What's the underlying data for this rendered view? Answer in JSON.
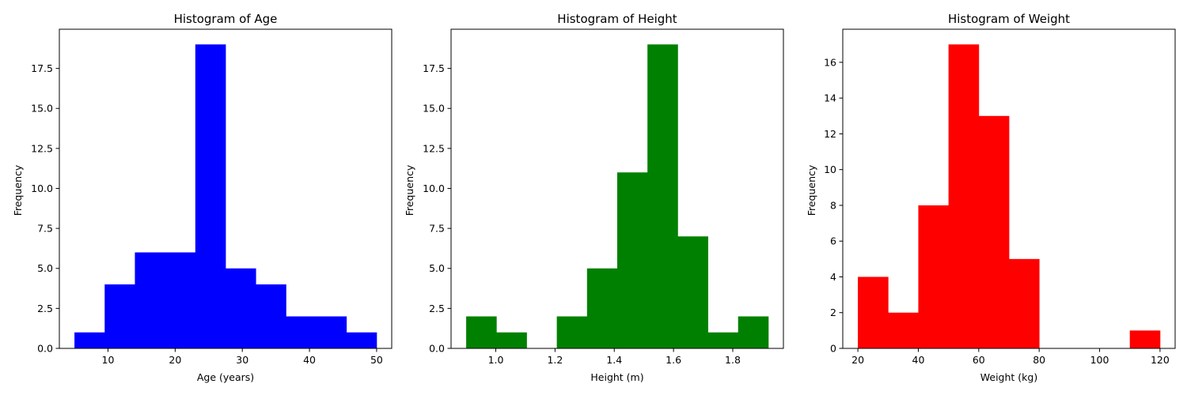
{
  "chart_data": [
    {
      "type": "bar",
      "title": "Histogram of Age",
      "xlabel": "Age (years)",
      "ylabel": "Frequency",
      "color": "#0000ff",
      "bin_edges": [
        5,
        9.5,
        14,
        18.5,
        23,
        27.5,
        32,
        36.5,
        41,
        45.5,
        50
      ],
      "values": [
        1,
        4,
        6,
        6,
        19,
        5,
        4,
        2,
        2,
        1
      ],
      "xlim": [
        2.75,
        52.25
      ],
      "ylim": [
        0,
        19.95
      ],
      "xticks": [
        10,
        20,
        30,
        40,
        50
      ],
      "xtick_labels": [
        "10",
        "20",
        "30",
        "40",
        "50"
      ],
      "yticks": [
        0,
        2.5,
        5,
        7.5,
        10,
        12.5,
        15,
        17.5
      ],
      "ytick_labels": [
        "0.0",
        "2.5",
        "5.0",
        "7.5",
        "10.0",
        "12.5",
        "15.0",
        "17.5"
      ]
    },
    {
      "type": "bar",
      "title": "Histogram of Height",
      "xlabel": "Height (m)",
      "ylabel": "Frequency",
      "color": "#008000",
      "bin_edges": [
        0.9,
        1.002,
        1.104,
        1.206,
        1.308,
        1.41,
        1.512,
        1.614,
        1.716,
        1.818,
        1.92
      ],
      "values": [
        2,
        1,
        0,
        2,
        5,
        11,
        19,
        7,
        1,
        2
      ],
      "xlim": [
        0.849,
        1.971
      ],
      "ylim": [
        0,
        19.95
      ],
      "xticks": [
        1.0,
        1.2,
        1.4,
        1.6,
        1.8
      ],
      "xtick_labels": [
        "1.0",
        "1.2",
        "1.4",
        "1.6",
        "1.8"
      ],
      "yticks": [
        0,
        2.5,
        5,
        7.5,
        10,
        12.5,
        15,
        17.5
      ],
      "ytick_labels": [
        "0.0",
        "2.5",
        "5.0",
        "7.5",
        "10.0",
        "12.5",
        "15.0",
        "17.5"
      ]
    },
    {
      "type": "bar",
      "title": "Histogram of Weight",
      "xlabel": "Weight (kg)",
      "ylabel": "Frequency",
      "color": "#ff0000",
      "bin_edges": [
        20,
        30,
        40,
        50,
        60,
        70,
        80,
        90,
        100,
        110,
        120
      ],
      "values": [
        4,
        2,
        8,
        17,
        13,
        5,
        0,
        0,
        0,
        1
      ],
      "xlim": [
        15,
        125
      ],
      "ylim": [
        0,
        17.85
      ],
      "xticks": [
        20,
        40,
        60,
        80,
        100,
        120
      ],
      "xtick_labels": [
        "20",
        "40",
        "60",
        "80",
        "100",
        "120"
      ],
      "yticks": [
        0,
        2,
        4,
        6,
        8,
        10,
        12,
        14,
        16
      ],
      "ytick_labels": [
        "0",
        "2",
        "4",
        "6",
        "8",
        "10",
        "12",
        "14",
        "16"
      ]
    }
  ]
}
